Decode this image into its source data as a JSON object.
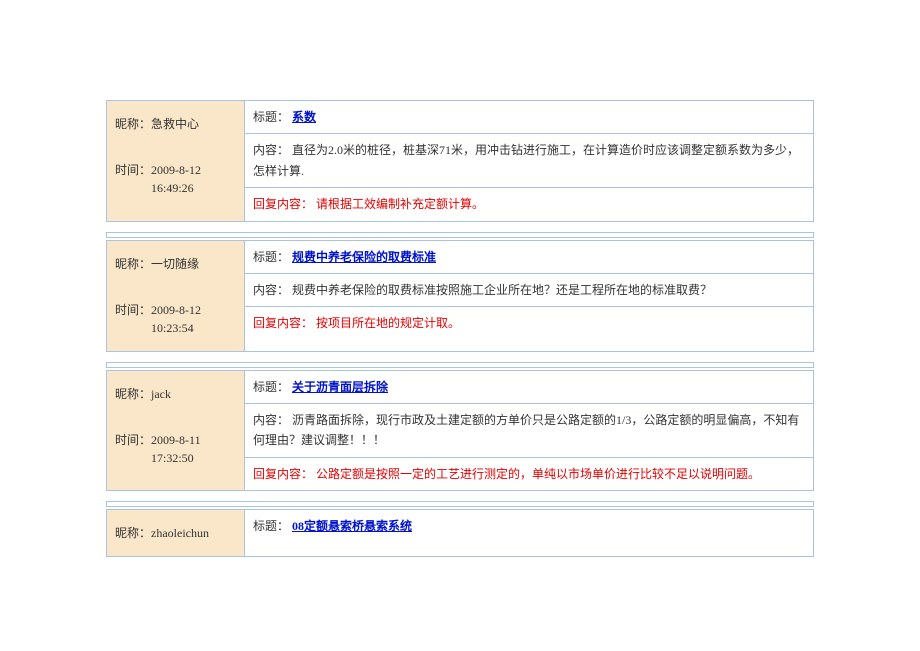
{
  "labels": {
    "nickname": "昵称：",
    "time": "时间：",
    "title": "标题：",
    "content": "内容：",
    "reply": "回复内容："
  },
  "colors": {
    "border": "#a8c4e0",
    "left_bg": "#fae6c8",
    "title_link": "#0012cc",
    "reply_text": "#e60000",
    "body_text": "#333333"
  },
  "posts": [
    {
      "nickname": "急救中心",
      "time": "2009-8-12 16:49:26",
      "title": "系数",
      "content": "直径为2.0米的桩径，桩基深71米，用冲击钻进行施工，在计算造价时应该调整定额系数为多少，怎样计算.",
      "reply": "请根据工效编制补充定额计算。"
    },
    {
      "nickname": "一切随缘",
      "time": "2009-8-12 10:23:54",
      "title": "规费中养老保险的取费标准",
      "content": "规费中养老保险的取费标准按照施工企业所在地？还是工程所在地的标准取费？",
      "reply": "按项目所在地的规定计取。"
    },
    {
      "nickname": "jack",
      "time": "2009-8-11 17:32:50",
      "title": "关于沥青面层拆除",
      "content": "沥青路面拆除，现行市政及土建定额的方单价只是公路定额的1/3，公路定额的明显偏高，不知有何理由？建议调整！！！",
      "reply": "公路定额是按照一定的工艺进行测定的，单纯以市场单价进行比较不足以说明问题。"
    },
    {
      "nickname": "zhaoleichun",
      "time": "",
      "title": "08定额悬索桥悬索系统",
      "content": "",
      "reply": ""
    }
  ]
}
